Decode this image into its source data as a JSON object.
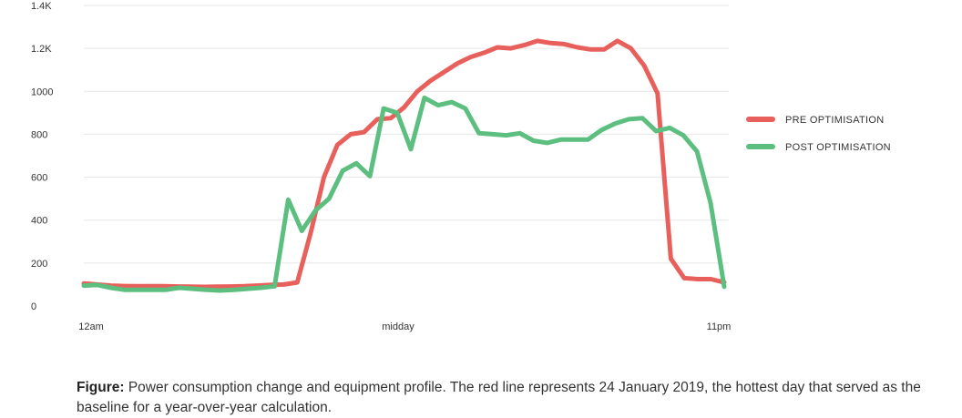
{
  "chart_data": {
    "type": "line",
    "x_labels": [
      "12am",
      "midday",
      "11pm"
    ],
    "y_tick_labels": [
      "0",
      "200",
      "400",
      "600",
      "800",
      "1000",
      "1.2K",
      "1.4K"
    ],
    "ylim": [
      0,
      1400
    ],
    "grid": "horizontal",
    "legend_position": "right",
    "series": [
      {
        "name": "PRE OPTIMISATION",
        "color": "#e8605c",
        "values": [
          105,
          100,
          95,
          93,
          92,
          92,
          92,
          91,
          90,
          89,
          90,
          91,
          92,
          95,
          98,
          100,
          110,
          340,
          600,
          750,
          800,
          810,
          870,
          875,
          925,
          1000,
          1050,
          1090,
          1130,
          1160,
          1180,
          1205,
          1200,
          1215,
          1235,
          1225,
          1220,
          1205,
          1195,
          1195,
          1235,
          1200,
          1120,
          990,
          220,
          130,
          125,
          125,
          110
        ]
      },
      {
        "name": "POST OPTIMISATION",
        "color": "#5cbf7f",
        "values": [
          95,
          98,
          85,
          75,
          75,
          75,
          75,
          85,
          80,
          75,
          72,
          75,
          80,
          85,
          92,
          495,
          350,
          445,
          500,
          630,
          665,
          605,
          920,
          900,
          730,
          970,
          935,
          950,
          920,
          805,
          800,
          795,
          805,
          770,
          760,
          775,
          775,
          775,
          820,
          850,
          870,
          875,
          815,
          830,
          795,
          720,
          480,
          90
        ]
      }
    ]
  },
  "caption": {
    "label": "Figure:",
    "text": " Power consumption change and equipment profile. The red line represents 24 January 2019, the hottest day that served as the baseline for a year-over-year calculation."
  }
}
